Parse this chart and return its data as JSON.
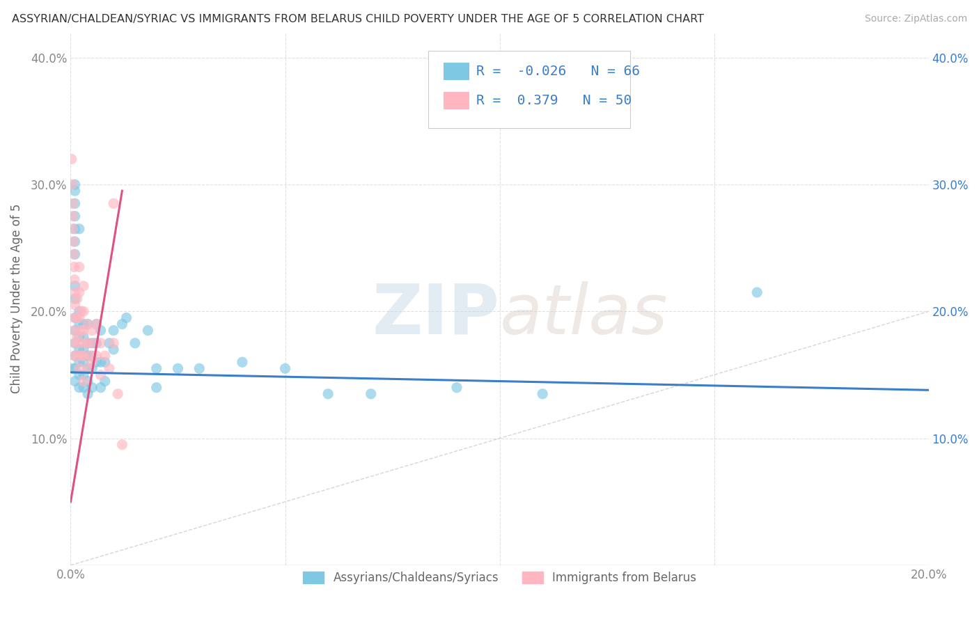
{
  "title": "ASSYRIAN/CHALDEAN/SYRIAC VS IMMIGRANTS FROM BELARUS CHILD POVERTY UNDER THE AGE OF 5 CORRELATION CHART",
  "source": "Source: ZipAtlas.com",
  "ylabel": "Child Poverty Under the Age of 5",
  "xlabel_blue": "Assyrians/Chaldeans/Syriacs",
  "xlabel_pink": "Immigrants from Belarus",
  "xlim": [
    0,
    0.2
  ],
  "ylim": [
    0,
    0.42
  ],
  "xticks": [
    0.0,
    0.05,
    0.1,
    0.15,
    0.2
  ],
  "yticks": [
    0.0,
    0.1,
    0.2,
    0.3,
    0.4
  ],
  "R_blue": -0.026,
  "N_blue": 66,
  "R_pink": 0.379,
  "N_pink": 50,
  "color_blue": "#7ec8e3",
  "color_pink": "#ffb6c1",
  "trendline_blue_color": "#3a7dc9",
  "trendline_pink_color": "#e05080",
  "diagonal_color": "#cccccc",
  "watermark_zip": "ZIP",
  "watermark_atlas": "atlas",
  "background_color": "#ffffff",
  "grid_color": "#e0e0e0",
  "blue_scatter": [
    [
      0.0005,
      0.155
    ],
    [
      0.001,
      0.3
    ],
    [
      0.001,
      0.295
    ],
    [
      0.001,
      0.285
    ],
    [
      0.001,
      0.275
    ],
    [
      0.001,
      0.265
    ],
    [
      0.001,
      0.255
    ],
    [
      0.001,
      0.245
    ],
    [
      0.001,
      0.22
    ],
    [
      0.001,
      0.21
    ],
    [
      0.001,
      0.195
    ],
    [
      0.001,
      0.185
    ],
    [
      0.001,
      0.175
    ],
    [
      0.001,
      0.165
    ],
    [
      0.001,
      0.155
    ],
    [
      0.001,
      0.145
    ],
    [
      0.002,
      0.265
    ],
    [
      0.002,
      0.2
    ],
    [
      0.002,
      0.19
    ],
    [
      0.002,
      0.18
    ],
    [
      0.002,
      0.17
    ],
    [
      0.002,
      0.16
    ],
    [
      0.002,
      0.15
    ],
    [
      0.002,
      0.14
    ],
    [
      0.003,
      0.19
    ],
    [
      0.003,
      0.18
    ],
    [
      0.003,
      0.17
    ],
    [
      0.003,
      0.16
    ],
    [
      0.003,
      0.15
    ],
    [
      0.003,
      0.14
    ],
    [
      0.004,
      0.19
    ],
    [
      0.004,
      0.175
    ],
    [
      0.004,
      0.165
    ],
    [
      0.004,
      0.155
    ],
    [
      0.004,
      0.145
    ],
    [
      0.004,
      0.135
    ],
    [
      0.005,
      0.175
    ],
    [
      0.005,
      0.165
    ],
    [
      0.005,
      0.155
    ],
    [
      0.005,
      0.14
    ],
    [
      0.006,
      0.19
    ],
    [
      0.006,
      0.175
    ],
    [
      0.006,
      0.16
    ],
    [
      0.007,
      0.185
    ],
    [
      0.007,
      0.16
    ],
    [
      0.007,
      0.14
    ],
    [
      0.008,
      0.16
    ],
    [
      0.008,
      0.145
    ],
    [
      0.009,
      0.175
    ],
    [
      0.01,
      0.185
    ],
    [
      0.01,
      0.17
    ],
    [
      0.012,
      0.19
    ],
    [
      0.013,
      0.195
    ],
    [
      0.015,
      0.175
    ],
    [
      0.018,
      0.185
    ],
    [
      0.02,
      0.155
    ],
    [
      0.02,
      0.14
    ],
    [
      0.025,
      0.155
    ],
    [
      0.03,
      0.155
    ],
    [
      0.04,
      0.16
    ],
    [
      0.05,
      0.155
    ],
    [
      0.06,
      0.135
    ],
    [
      0.07,
      0.135
    ],
    [
      0.09,
      0.14
    ],
    [
      0.11,
      0.135
    ],
    [
      0.16,
      0.215
    ]
  ],
  "pink_scatter": [
    [
      0.0002,
      0.32
    ],
    [
      0.0003,
      0.3
    ],
    [
      0.0004,
      0.285
    ],
    [
      0.0005,
      0.275
    ],
    [
      0.0005,
      0.265
    ],
    [
      0.0006,
      0.255
    ],
    [
      0.0007,
      0.245
    ],
    [
      0.0008,
      0.235
    ],
    [
      0.0009,
      0.225
    ],
    [
      0.001,
      0.215
    ],
    [
      0.001,
      0.205
    ],
    [
      0.001,
      0.195
    ],
    [
      0.001,
      0.185
    ],
    [
      0.001,
      0.175
    ],
    [
      0.001,
      0.165
    ],
    [
      0.0015,
      0.21
    ],
    [
      0.0015,
      0.195
    ],
    [
      0.0015,
      0.18
    ],
    [
      0.0015,
      0.165
    ],
    [
      0.002,
      0.235
    ],
    [
      0.002,
      0.215
    ],
    [
      0.002,
      0.195
    ],
    [
      0.002,
      0.175
    ],
    [
      0.002,
      0.155
    ],
    [
      0.0025,
      0.2
    ],
    [
      0.0025,
      0.185
    ],
    [
      0.0025,
      0.165
    ],
    [
      0.003,
      0.22
    ],
    [
      0.003,
      0.2
    ],
    [
      0.003,
      0.185
    ],
    [
      0.003,
      0.165
    ],
    [
      0.003,
      0.145
    ],
    [
      0.0035,
      0.175
    ],
    [
      0.004,
      0.19
    ],
    [
      0.004,
      0.175
    ],
    [
      0.004,
      0.155
    ],
    [
      0.0045,
      0.165
    ],
    [
      0.005,
      0.185
    ],
    [
      0.005,
      0.16
    ],
    [
      0.0055,
      0.175
    ],
    [
      0.006,
      0.19
    ],
    [
      0.006,
      0.165
    ],
    [
      0.007,
      0.175
    ],
    [
      0.007,
      0.15
    ],
    [
      0.008,
      0.165
    ],
    [
      0.009,
      0.155
    ],
    [
      0.01,
      0.175
    ],
    [
      0.01,
      0.285
    ],
    [
      0.011,
      0.135
    ],
    [
      0.012,
      0.095
    ]
  ]
}
